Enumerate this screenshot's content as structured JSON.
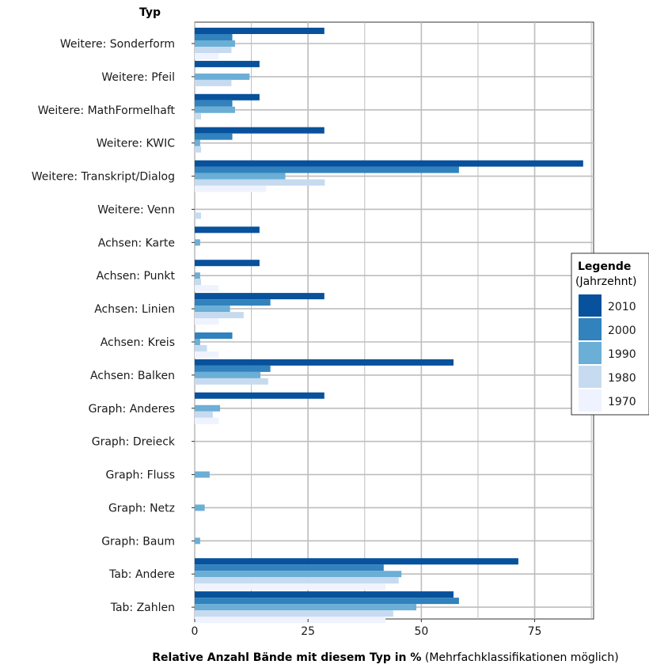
{
  "chart_data": {
    "type": "bar",
    "orientation": "horizontal",
    "y_axis_title": "Typ",
    "xlabel_bold": "Relative Anzahl Bände mit diesem Typ in %",
    "xlabel_rest": "(Mehrfachklassifikationen möglich)",
    "xlim": [
      0,
      88
    ],
    "xticks": [
      0,
      25,
      50,
      75
    ],
    "grid": true,
    "legend": {
      "title": "Legende",
      "subtitle": "(Jahrzehnt)",
      "placement": "right"
    },
    "categories": [
      "Weitere: Sonderform",
      "Weitere: Pfeil",
      "Weitere: MathFormelhaft",
      "Weitere: KWIC",
      "Weitere: Transkript/Dialog",
      "Weitere: Venn",
      "Achsen: Karte",
      "Achsen: Punkt",
      "Achsen: Linien",
      "Achsen: Kreis",
      "Achsen: Balken",
      "Graph: Anderes",
      "Graph: Dreieck",
      "Graph: Fluss",
      "Graph: Netz",
      "Graph: Baum",
      "Tab: Andere",
      "Tab: Zahlen"
    ],
    "series": [
      {
        "name": "2010",
        "color": "#08519c",
        "values": [
          28.6,
          14.3,
          14.3,
          28.6,
          85.7,
          0,
          14.3,
          14.3,
          28.6,
          0,
          57.1,
          28.6,
          0,
          0,
          0,
          0,
          71.4,
          57.1
        ]
      },
      {
        "name": "2000",
        "color": "#3182bd",
        "values": [
          8.3,
          0,
          8.3,
          8.3,
          58.3,
          0,
          0,
          0,
          16.7,
          8.3,
          16.7,
          0,
          0,
          0,
          0,
          0,
          41.7,
          58.3
        ]
      },
      {
        "name": "1990",
        "color": "#6baed6",
        "values": [
          8.9,
          12.1,
          8.9,
          1.2,
          20.0,
          0,
          1.2,
          1.2,
          7.8,
          1.2,
          14.5,
          5.6,
          0,
          3.3,
          2.2,
          1.2,
          45.6,
          48.9
        ]
      },
      {
        "name": "1980",
        "color": "#c6dbef",
        "values": [
          8.1,
          8.1,
          1.4,
          1.4,
          28.7,
          1.4,
          0,
          1.4,
          10.8,
          2.7,
          16.2,
          4.0,
          0,
          0,
          0,
          0,
          45.0,
          43.8
        ]
      },
      {
        "name": "1970",
        "color": "#eff3ff",
        "values": [
          5.3,
          0,
          0,
          0,
          15.8,
          0,
          0,
          5.3,
          5.3,
          5.3,
          0,
          5.3,
          0,
          0,
          0,
          0,
          42.1,
          42.1
        ]
      }
    ]
  }
}
